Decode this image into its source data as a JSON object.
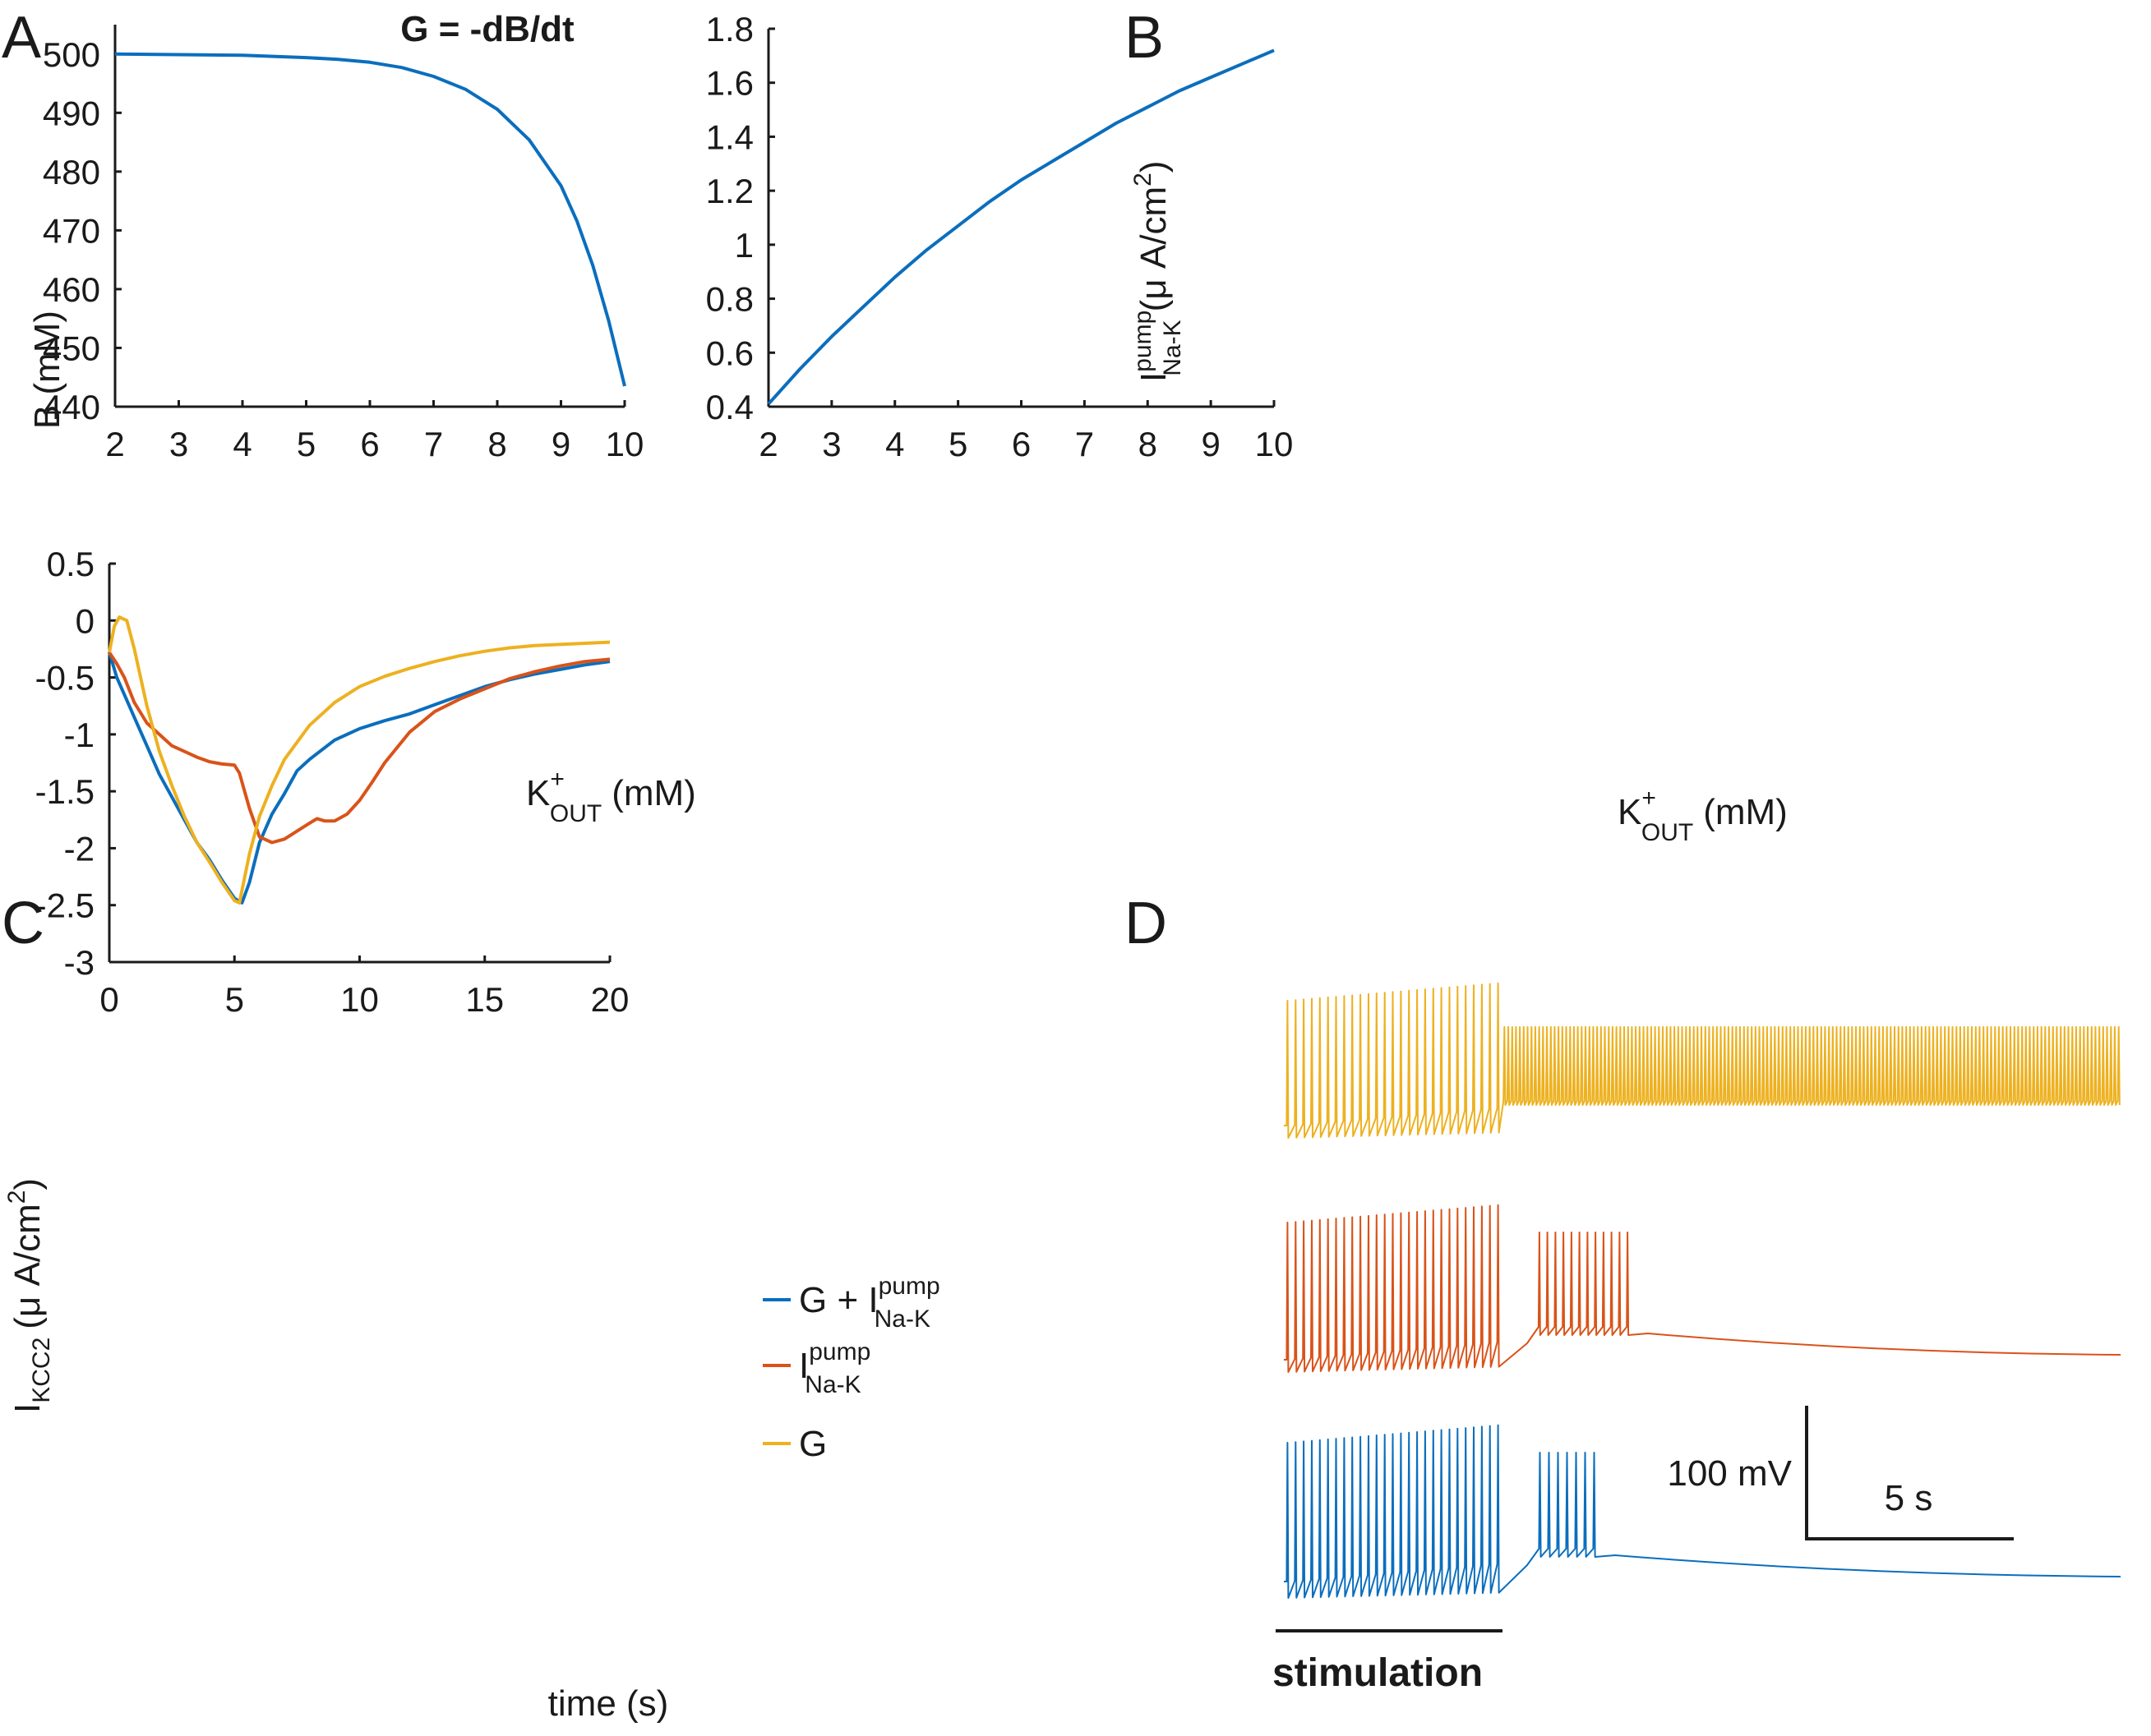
{
  "colors": {
    "blue": "#0b6ebd",
    "orange": "#d95319",
    "yellow": "#edb120",
    "axis": "#1a1a1a"
  },
  "panels": {
    "A": {
      "letter": "A"
    },
    "B": {
      "letter": "B"
    },
    "C": {
      "letter": "C"
    },
    "D": {
      "letter": "D"
    }
  },
  "chart_data": [
    {
      "panel": "A",
      "type": "line",
      "title": "G = -dB/dt",
      "xlabel_main": "K",
      "xlabel_sup": "+",
      "xlabel_sub": "OUT",
      "xlabel_unit": "(mM)",
      "ylabel": "B (mM)",
      "xlim": [
        2,
        10
      ],
      "ylim": [
        440,
        505
      ],
      "xticks": [
        2,
        3,
        4,
        5,
        6,
        7,
        8,
        9,
        10
      ],
      "yticks": [
        440,
        450,
        460,
        470,
        480,
        490,
        500
      ],
      "series": [
        {
          "color": "blue",
          "x": [
            2,
            3,
            4,
            5,
            5.5,
            6,
            6.5,
            7,
            7.5,
            8,
            8.5,
            9,
            9.25,
            9.5,
            9.75,
            10
          ],
          "y": [
            500,
            499.9,
            499.8,
            499.4,
            499.1,
            498.6,
            497.7,
            496.2,
            494.0,
            490.6,
            485.4,
            477.6,
            471.6,
            464.0,
            454.6,
            443.5
          ]
        }
      ]
    },
    {
      "panel": "B",
      "type": "line",
      "xlabel_main": "K",
      "xlabel_sup": "+",
      "xlabel_sub": "OUT",
      "xlabel_unit": "(mM)",
      "ylabel_main": "I",
      "ylabel_sup": "pump",
      "ylabel_sub": "Na-K",
      "ylabel_unit": "(μ A/cm",
      "ylabel_unit_sup": "2",
      "ylabel_unit_close": ")",
      "xlim": [
        2,
        10
      ],
      "ylim": [
        0.4,
        1.8
      ],
      "xticks": [
        2,
        3,
        4,
        5,
        6,
        7,
        8,
        9,
        10
      ],
      "yticks": [
        "0.4",
        "0.6",
        "0.8",
        "1",
        "1.2",
        "1.4",
        "1.6",
        "1.8"
      ],
      "series": [
        {
          "color": "blue",
          "x": [
            2,
            2.5,
            3,
            3.5,
            4,
            4.5,
            5,
            5.5,
            6,
            6.5,
            7,
            7.5,
            8,
            8.5,
            9,
            9.5,
            10
          ],
          "y": [
            0.41,
            0.54,
            0.66,
            0.77,
            0.88,
            0.98,
            1.07,
            1.16,
            1.24,
            1.31,
            1.38,
            1.45,
            1.51,
            1.57,
            1.62,
            1.67,
            1.72
          ]
        }
      ]
    },
    {
      "panel": "C",
      "type": "line",
      "xlabel": "time (s)",
      "ylabel_main": "I",
      "ylabel_sub": "KCC2",
      "ylabel_unit": "(μ A/cm",
      "ylabel_unit_sup": "2",
      "ylabel_unit_close": ")",
      "xlim": [
        0,
        20
      ],
      "ylim": [
        -3,
        0.5
      ],
      "xticks": [
        0,
        5,
        10,
        15,
        20
      ],
      "yticks": [
        "-3",
        "-2.5",
        "-2",
        "-1.5",
        "-1",
        "-0.5",
        "0",
        "0.5"
      ],
      "legend_position": "right",
      "series": [
        {
          "legend_main": "G + I",
          "legend_sup": "pump",
          "legend_sub": "Na-K",
          "color": "blue",
          "x": [
            0,
            0.3,
            0.6,
            1,
            1.5,
            2,
            2.5,
            3,
            3.5,
            4,
            4.5,
            5,
            5.3,
            5.6,
            6,
            6.5,
            7,
            7.5,
            8,
            9,
            10,
            11,
            12,
            13,
            14,
            15,
            16,
            17,
            18,
            19,
            20
          ],
          "y": [
            -0.28,
            -0.5,
            -0.65,
            -0.85,
            -1.1,
            -1.35,
            -1.55,
            -1.75,
            -1.95,
            -2.1,
            -2.28,
            -2.44,
            -2.48,
            -2.3,
            -1.95,
            -1.7,
            -1.52,
            -1.32,
            -1.22,
            -1.05,
            -0.95,
            -0.88,
            -0.82,
            -0.74,
            -0.66,
            -0.58,
            -0.52,
            -0.47,
            -0.43,
            -0.39,
            -0.36
          ]
        },
        {
          "legend_main": "I",
          "legend_sup": "pump",
          "legend_sub": "Na-K",
          "color": "orange",
          "x": [
            0,
            0.3,
            0.6,
            1,
            1.5,
            2,
            2.5,
            3,
            3.5,
            4,
            4.5,
            5,
            5.2,
            5.6,
            6,
            6.5,
            7,
            7.5,
            8,
            8.3,
            8.6,
            9,
            9.5,
            10,
            10.5,
            11,
            12,
            13,
            14,
            15,
            16,
            17,
            18,
            19,
            20
          ],
          "y": [
            -0.28,
            -0.38,
            -0.5,
            -0.72,
            -0.9,
            -1.0,
            -1.1,
            -1.15,
            -1.2,
            -1.24,
            -1.26,
            -1.27,
            -1.34,
            -1.65,
            -1.9,
            -1.95,
            -1.92,
            -1.85,
            -1.78,
            -1.74,
            -1.76,
            -1.76,
            -1.7,
            -1.58,
            -1.42,
            -1.25,
            -0.98,
            -0.8,
            -0.69,
            -0.6,
            -0.51,
            -0.45,
            -0.4,
            -0.36,
            -0.34
          ]
        },
        {
          "legend_main": "G",
          "color": "yellow",
          "x": [
            0,
            0.2,
            0.4,
            0.7,
            1,
            1.5,
            2,
            2.5,
            3,
            3.5,
            4,
            4.5,
            5,
            5.2,
            5.6,
            6,
            6.5,
            7,
            8,
            9,
            10,
            11,
            12,
            13,
            14,
            15,
            16,
            17,
            18,
            19,
            20
          ],
          "y": [
            -0.28,
            -0.05,
            0.03,
            0.0,
            -0.25,
            -0.75,
            -1.15,
            -1.45,
            -1.72,
            -1.95,
            -2.12,
            -2.3,
            -2.46,
            -2.48,
            -2.05,
            -1.72,
            -1.45,
            -1.22,
            -0.92,
            -0.72,
            -0.58,
            -0.49,
            -0.42,
            -0.36,
            -0.31,
            -0.27,
            -0.24,
            -0.22,
            -0.21,
            -0.2,
            -0.19
          ]
        }
      ]
    }
  ],
  "panel_d": {
    "scale_voltage": "100 mV",
    "scale_time": "5 s",
    "stimulation_label": "stimulation",
    "traces": [
      {
        "color": "yellow",
        "stim_spikes": 27,
        "post_mode": "continuous"
      },
      {
        "color": "orange",
        "stim_spikes": 27,
        "post_spikes": 12
      },
      {
        "color": "blue",
        "stim_spikes": 27,
        "post_spikes": 7
      }
    ]
  }
}
